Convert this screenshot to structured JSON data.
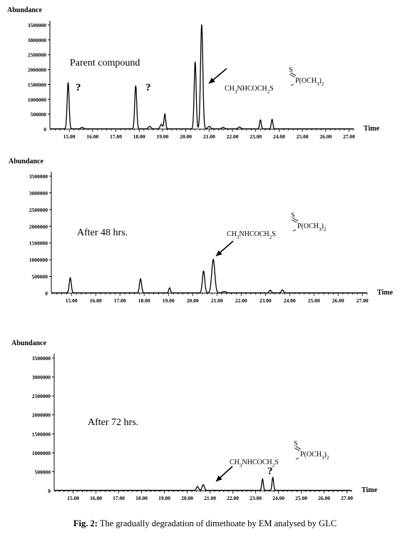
{
  "caption": {
    "label": "Fig. 2:",
    "text": "The gradually degradation of dimethoate by EM analysed by GLC"
  },
  "chart_data": [
    {
      "type": "line",
      "ylabel": "Abundance",
      "xlabel": "Time",
      "xlim": [
        14.2,
        27.2
      ],
      "ylim": [
        0,
        3500000
      ],
      "x_ticks": [
        "15.00",
        "16.00",
        "17.00",
        "18.00",
        "19.00",
        "20.00",
        "21.00",
        "22.00",
        "23.00",
        "24.00",
        "25.00",
        "26.00",
        "27.00"
      ],
      "y_ticks": [
        "500000",
        "1000000",
        "1500000",
        "2000000",
        "2500000",
        "3000000",
        "3500000"
      ],
      "annotation": "Parent compound",
      "question_marks": 2,
      "formula": {
        "top": "S",
        "right": "P(OCH3)2",
        "left": "CH3NHCOCH2S"
      },
      "peaks": [
        {
          "x": 14.95,
          "y": 1550000,
          "w": 0.06
        },
        {
          "x": 15.55,
          "y": 50000,
          "w": 0.08
        },
        {
          "x": 17.85,
          "y": 1450000,
          "w": 0.06
        },
        {
          "x": 18.45,
          "y": 80000,
          "w": 0.08
        },
        {
          "x": 18.95,
          "y": 150000,
          "w": 0.07
        },
        {
          "x": 19.1,
          "y": 500000,
          "w": 0.05
        },
        {
          "x": 20.4,
          "y": 2250000,
          "w": 0.06
        },
        {
          "x": 20.68,
          "y": 3500000,
          "w": 0.07
        },
        {
          "x": 21.0,
          "y": 80000,
          "w": 0.08
        },
        {
          "x": 21.6,
          "y": 50000,
          "w": 0.08
        },
        {
          "x": 22.3,
          "y": 60000,
          "w": 0.08
        },
        {
          "x": 23.2,
          "y": 300000,
          "w": 0.05
        },
        {
          "x": 23.7,
          "y": 320000,
          "w": 0.05
        }
      ]
    },
    {
      "type": "line",
      "ylabel": "Abundance",
      "xlabel": "Time",
      "xlim": [
        14.2,
        27.2
      ],
      "ylim": [
        0,
        3500000
      ],
      "x_ticks": [
        "15.00",
        "16.00",
        "17.00",
        "18.00",
        "19.00",
        "20.00",
        "21.00",
        "22.00",
        "23.00",
        "24.00",
        "25.00",
        "26.00",
        "27.00"
      ],
      "y_ticks": [
        "500000",
        "1000000",
        "1500000",
        "2000000",
        "2500000",
        "3000000",
        "3500000"
      ],
      "annotation": "After 48 hrs.",
      "question_marks": 0,
      "formula": {
        "top": "S",
        "right": "P(OCH3)2",
        "left": "CH3NHCOCH2S"
      },
      "peaks": [
        {
          "x": 14.95,
          "y": 450000,
          "w": 0.06
        },
        {
          "x": 17.85,
          "y": 420000,
          "w": 0.06
        },
        {
          "x": 19.05,
          "y": 150000,
          "w": 0.05
        },
        {
          "x": 20.45,
          "y": 650000,
          "w": 0.07
        },
        {
          "x": 20.85,
          "y": 1000000,
          "w": 0.09
        },
        {
          "x": 21.3,
          "y": 40000,
          "w": 0.1
        },
        {
          "x": 23.2,
          "y": 80000,
          "w": 0.06
        },
        {
          "x": 23.7,
          "y": 90000,
          "w": 0.06
        }
      ]
    },
    {
      "type": "line",
      "ylabel": "Abundance",
      "xlabel": "Time",
      "xlim": [
        14.2,
        27.2
      ],
      "ylim": [
        0,
        3500000
      ],
      "x_ticks": [
        "15.00",
        "16.00",
        "17.00",
        "18.00",
        "19.00",
        "20.00",
        "21.00",
        "22.00",
        "23.00",
        "24.00",
        "25.00",
        "26.00",
        "27.00"
      ],
      "y_ticks": [
        "500000",
        "1000000",
        "1500000",
        "2000000",
        "2500000",
        "3000000",
        "3500000"
      ],
      "annotation": "After 72 hrs.",
      "question_marks": 1,
      "formula": {
        "top": "S",
        "right": "P(OCH3)2",
        "left": "CH3NHCOCH2S"
      },
      "peaks": [
        {
          "x": 20.45,
          "y": 100000,
          "w": 0.07
        },
        {
          "x": 20.7,
          "y": 150000,
          "w": 0.07
        },
        {
          "x": 23.3,
          "y": 300000,
          "w": 0.05
        },
        {
          "x": 23.75,
          "y": 340000,
          "w": 0.05
        }
      ]
    }
  ]
}
